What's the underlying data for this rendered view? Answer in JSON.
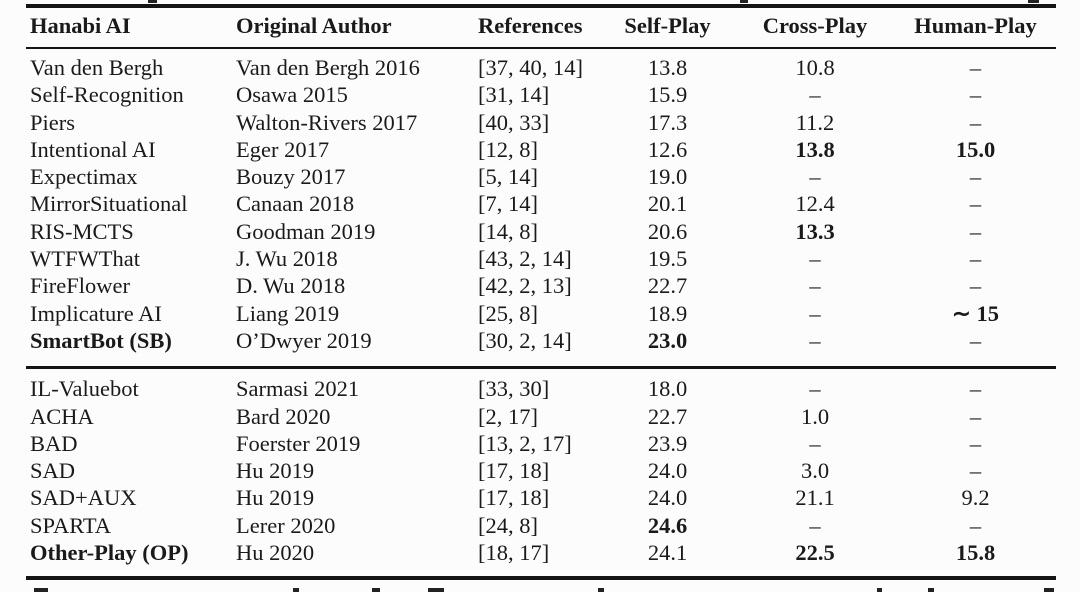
{
  "page": {
    "background": "#fcfcfc",
    "text_color": "#1a1a1a",
    "rule_color": "#141414",
    "missing_value_marker": "–"
  },
  "table": {
    "columns": [
      {
        "label": "Hanabi AI"
      },
      {
        "label": "Original Author"
      },
      {
        "label": "References"
      },
      {
        "label": "Self-Play"
      },
      {
        "label": "Cross-Play"
      },
      {
        "label": "Human-Play"
      }
    ],
    "sections": [
      {
        "rows": [
          {
            "cells": [
              "Van den Bergh",
              "Van den Bergh 2016",
              "[37, 40, 14]",
              "13.8",
              "10.8",
              "–"
            ]
          },
          {
            "cells": [
              "Self-Recognition",
              "Osawa 2015",
              "[31, 14]",
              "15.9",
              "–",
              "–"
            ]
          },
          {
            "cells": [
              "Piers",
              "Walton-Rivers 2017",
              "[40, 33]",
              "17.3",
              "11.2",
              "–"
            ]
          },
          {
            "cells": [
              "Intentional AI",
              "Eger 2017",
              "[12, 8]",
              "12.6",
              "13.8",
              "15.0"
            ],
            "bold": [
              4,
              5
            ]
          },
          {
            "cells": [
              "Expectimax",
              "Bouzy 2017",
              "[5, 14]",
              "19.0",
              "–",
              "–"
            ]
          },
          {
            "cells": [
              "MirrorSituational",
              "Canaan 2018",
              "[7, 14]",
              "20.1",
              "12.4",
              "–"
            ]
          },
          {
            "cells": [
              "RIS-MCTS",
              "Goodman 2019",
              "[14, 8]",
              "20.6",
              "13.3",
              "–"
            ],
            "bold": [
              4
            ]
          },
          {
            "cells": [
              "WTFWThat",
              "J. Wu 2018",
              "[43, 2, 14]",
              "19.5",
              "–",
              "–"
            ]
          },
          {
            "cells": [
              "FireFlower",
              "D. Wu 2018",
              "[42, 2, 13]",
              "22.7",
              "–",
              "–"
            ]
          },
          {
            "cells": [
              "Implicature AI",
              "Liang 2019",
              "[25, 8]",
              "18.9",
              "–",
              "∼ 15"
            ],
            "bold": [
              5
            ]
          },
          {
            "cells": [
              "SmartBot (SB)",
              "O’Dwyer 2019",
              "[30, 2, 14]",
              "23.0",
              "–",
              "–"
            ],
            "bold": [
              0,
              3
            ]
          }
        ]
      },
      {
        "rows": [
          {
            "cells": [
              "IL-Valuebot",
              "Sarmasi 2021",
              "[33, 30]",
              "18.0",
              "–",
              "–"
            ]
          },
          {
            "cells": [
              "ACHA",
              "Bard 2020",
              "[2, 17]",
              "22.7",
              "1.0",
              "–"
            ]
          },
          {
            "cells": [
              "BAD",
              "Foerster 2019",
              "[13, 2, 17]",
              "23.9",
              "–",
              "–"
            ]
          },
          {
            "cells": [
              "SAD",
              "Hu 2019",
              "[17, 18]",
              "24.0",
              "3.0",
              "–"
            ]
          },
          {
            "cells": [
              "SAD+AUX",
              "Hu 2019",
              "[17, 18]",
              "24.0",
              "21.1",
              "9.2"
            ]
          },
          {
            "cells": [
              "SPARTA",
              "Lerer 2020",
              "[24, 8]",
              "24.6",
              "–",
              "–"
            ],
            "bold": [
              3
            ]
          },
          {
            "cells": [
              "Other-Play (OP)",
              "Hu 2020",
              "[18, 17]",
              "24.1",
              "22.5",
              "15.8"
            ],
            "bold": [
              0,
              4,
              5
            ]
          }
        ]
      }
    ]
  }
}
